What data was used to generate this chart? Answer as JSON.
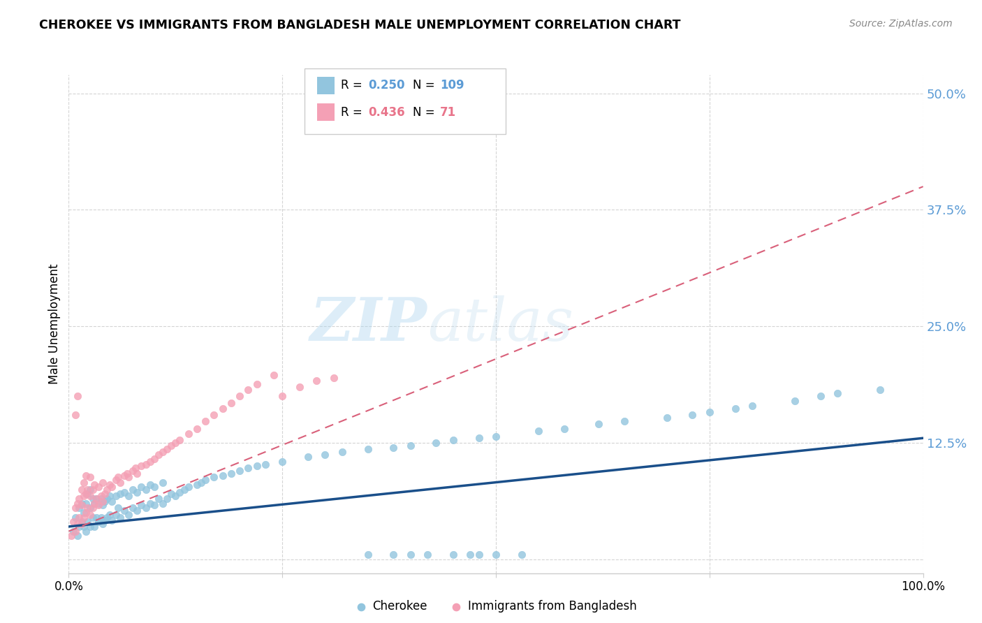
{
  "title": "CHEROKEE VS IMMIGRANTS FROM BANGLADESH MALE UNEMPLOYMENT CORRELATION CHART",
  "source": "Source: ZipAtlas.com",
  "ylabel": "Male Unemployment",
  "xlim": [
    0,
    1.0
  ],
  "ylim": [
    -0.015,
    0.52
  ],
  "color_cherokee": "#92c5de",
  "color_bangladesh": "#f4a0b5",
  "color_cherokee_line": "#1a4f8a",
  "color_bangladesh_line": "#d9607a",
  "background_color": "#ffffff",
  "grid_color": "#d0d0d0",
  "cherokee_scatter_x": [
    0.005,
    0.008,
    0.01,
    0.012,
    0.012,
    0.015,
    0.015,
    0.018,
    0.018,
    0.02,
    0.02,
    0.022,
    0.022,
    0.025,
    0.025,
    0.025,
    0.028,
    0.028,
    0.03,
    0.03,
    0.032,
    0.032,
    0.035,
    0.035,
    0.038,
    0.038,
    0.04,
    0.04,
    0.042,
    0.042,
    0.045,
    0.045,
    0.048,
    0.048,
    0.05,
    0.05,
    0.055,
    0.055,
    0.058,
    0.06,
    0.06,
    0.065,
    0.065,
    0.07,
    0.07,
    0.075,
    0.075,
    0.08,
    0.08,
    0.085,
    0.085,
    0.09,
    0.09,
    0.095,
    0.095,
    0.1,
    0.1,
    0.105,
    0.11,
    0.11,
    0.115,
    0.12,
    0.125,
    0.13,
    0.135,
    0.14,
    0.15,
    0.155,
    0.16,
    0.17,
    0.18,
    0.19,
    0.2,
    0.21,
    0.22,
    0.23,
    0.25,
    0.28,
    0.3,
    0.32,
    0.35,
    0.38,
    0.4,
    0.43,
    0.45,
    0.48,
    0.5,
    0.55,
    0.58,
    0.62,
    0.65,
    0.7,
    0.73,
    0.75,
    0.78,
    0.8,
    0.85,
    0.88,
    0.9,
    0.95,
    0.4,
    0.45,
    0.35,
    0.5,
    0.42,
    0.47,
    0.53,
    0.48,
    0.38
  ],
  "cherokee_scatter_y": [
    0.03,
    0.045,
    0.025,
    0.055,
    0.035,
    0.04,
    0.06,
    0.035,
    0.05,
    0.03,
    0.06,
    0.04,
    0.07,
    0.035,
    0.055,
    0.075,
    0.045,
    0.065,
    0.035,
    0.06,
    0.045,
    0.065,
    0.04,
    0.06,
    0.045,
    0.065,
    0.038,
    0.058,
    0.042,
    0.062,
    0.045,
    0.065,
    0.048,
    0.068,
    0.042,
    0.062,
    0.048,
    0.068,
    0.055,
    0.045,
    0.07,
    0.052,
    0.072,
    0.048,
    0.068,
    0.055,
    0.075,
    0.052,
    0.072,
    0.058,
    0.078,
    0.055,
    0.075,
    0.06,
    0.08,
    0.058,
    0.078,
    0.065,
    0.06,
    0.082,
    0.065,
    0.07,
    0.068,
    0.072,
    0.075,
    0.078,
    0.08,
    0.082,
    0.085,
    0.088,
    0.09,
    0.092,
    0.095,
    0.098,
    0.1,
    0.102,
    0.105,
    0.11,
    0.112,
    0.115,
    0.118,
    0.12,
    0.122,
    0.125,
    0.128,
    0.13,
    0.132,
    0.138,
    0.14,
    0.145,
    0.148,
    0.152,
    0.155,
    0.158,
    0.162,
    0.165,
    0.17,
    0.175,
    0.178,
    0.182,
    0.005,
    0.005,
    0.005,
    0.005,
    0.005,
    0.005,
    0.005,
    0.005,
    0.005
  ],
  "bangladesh_scatter_x": [
    0.003,
    0.005,
    0.008,
    0.008,
    0.01,
    0.01,
    0.012,
    0.012,
    0.015,
    0.015,
    0.015,
    0.018,
    0.018,
    0.018,
    0.02,
    0.02,
    0.02,
    0.022,
    0.022,
    0.025,
    0.025,
    0.025,
    0.028,
    0.028,
    0.03,
    0.03,
    0.032,
    0.035,
    0.035,
    0.038,
    0.04,
    0.04,
    0.042,
    0.045,
    0.048,
    0.05,
    0.055,
    0.058,
    0.06,
    0.065,
    0.068,
    0.07,
    0.075,
    0.078,
    0.08,
    0.085,
    0.09,
    0.095,
    0.1,
    0.105,
    0.11,
    0.115,
    0.12,
    0.125,
    0.13,
    0.14,
    0.15,
    0.16,
    0.17,
    0.18,
    0.19,
    0.2,
    0.21,
    0.22,
    0.24,
    0.25,
    0.27,
    0.29,
    0.31,
    0.008,
    0.01
  ],
  "bangladesh_scatter_y": [
    0.025,
    0.04,
    0.03,
    0.055,
    0.038,
    0.06,
    0.045,
    0.065,
    0.038,
    0.058,
    0.075,
    0.045,
    0.068,
    0.082,
    0.05,
    0.07,
    0.09,
    0.055,
    0.075,
    0.048,
    0.068,
    0.088,
    0.055,
    0.075,
    0.06,
    0.08,
    0.065,
    0.058,
    0.078,
    0.068,
    0.062,
    0.082,
    0.07,
    0.075,
    0.08,
    0.078,
    0.085,
    0.088,
    0.082,
    0.09,
    0.092,
    0.088,
    0.095,
    0.098,
    0.092,
    0.1,
    0.102,
    0.105,
    0.108,
    0.112,
    0.115,
    0.118,
    0.122,
    0.125,
    0.128,
    0.135,
    0.14,
    0.148,
    0.155,
    0.162,
    0.168,
    0.175,
    0.182,
    0.188,
    0.198,
    0.175,
    0.185,
    0.192,
    0.195,
    0.155,
    0.175
  ],
  "cherokee_line_x": [
    0.0,
    1.0
  ],
  "cherokee_line_y": [
    0.035,
    0.13
  ],
  "bangladesh_line_x": [
    0.0,
    1.0
  ],
  "bangladesh_line_y": [
    0.03,
    0.4
  ]
}
